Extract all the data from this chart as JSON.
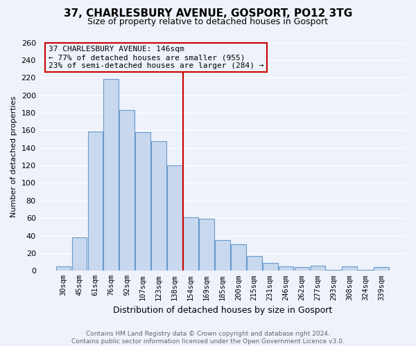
{
  "title": "37, CHARLESBURY AVENUE, GOSPORT, PO12 3TG",
  "subtitle": "Size of property relative to detached houses in Gosport",
  "xlabel": "Distribution of detached houses by size in Gosport",
  "ylabel": "Number of detached properties",
  "bar_color": "#c8d8ee",
  "bar_edge_color": "#6699cc",
  "categories": [
    "30sqm",
    "45sqm",
    "61sqm",
    "76sqm",
    "92sqm",
    "107sqm",
    "123sqm",
    "138sqm",
    "154sqm",
    "169sqm",
    "185sqm",
    "200sqm",
    "215sqm",
    "231sqm",
    "246sqm",
    "262sqm",
    "277sqm",
    "293sqm",
    "308sqm",
    "324sqm",
    "339sqm"
  ],
  "values": [
    5,
    38,
    159,
    219,
    183,
    158,
    148,
    120,
    61,
    59,
    35,
    30,
    17,
    9,
    5,
    4,
    6,
    1,
    5,
    1,
    4
  ],
  "ylim": [
    0,
    260
  ],
  "yticks": [
    0,
    20,
    40,
    60,
    80,
    100,
    120,
    140,
    160,
    180,
    200,
    220,
    240,
    260
  ],
  "property_line_x": 7.5,
  "property_line_label": "37 CHARLESBURY AVENUE: 146sqm",
  "annotation_smaller": "← 77% of detached houses are smaller (955)",
  "annotation_larger": "23% of semi-detached houses are larger (284) →",
  "footer_line1": "Contains HM Land Registry data © Crown copyright and database right 2024.",
  "footer_line2": "Contains public sector information licensed under the Open Government Licence v3.0.",
  "background_color": "#eef2fa",
  "grid_color": "#ffffff",
  "annotation_bg_color": "#eef2fa",
  "annotation_border_color": "#cc0000",
  "vline_color": "#cc0000",
  "title_fontsize": 11,
  "subtitle_fontsize": 9,
  "ylabel_fontsize": 8,
  "xlabel_fontsize": 9,
  "tick_fontsize": 8,
  "xtick_fontsize": 7.5,
  "ann_fontsize": 8,
  "footer_fontsize": 6.5
}
